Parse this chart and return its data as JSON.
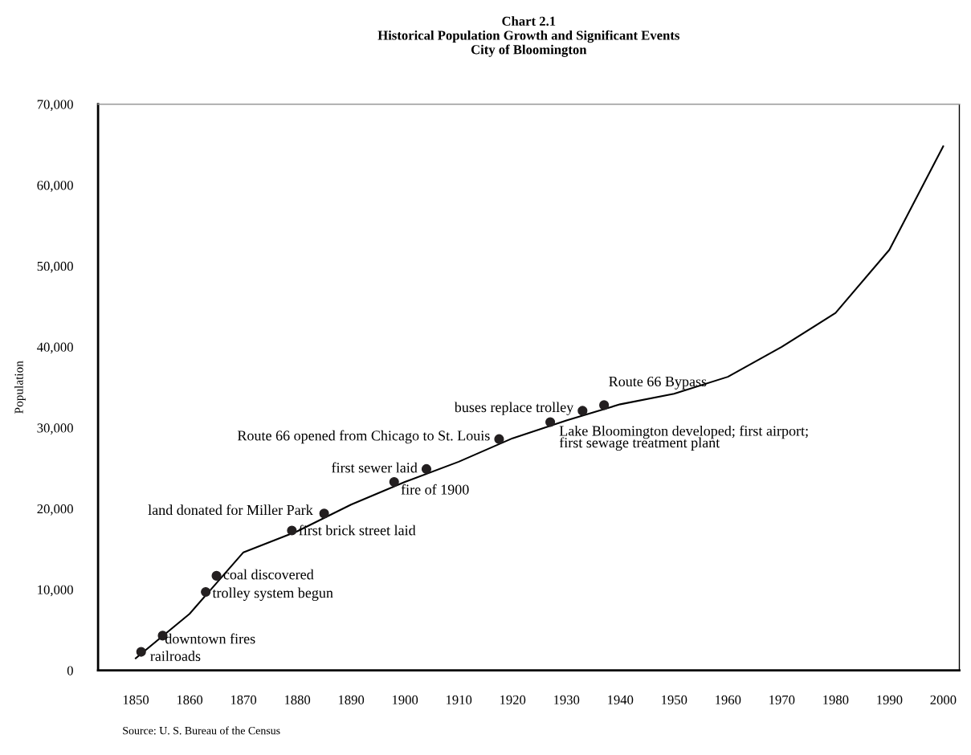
{
  "chart_data": {
    "type": "line",
    "title": "Chart 2.1\nHistorical Population Growth and Significant Events\nCity of Bloomington",
    "ylabel": "Population",
    "xlim": [
      1843,
      2003
    ],
    "xticks": [
      1850,
      1860,
      1870,
      1880,
      1890,
      1900,
      1910,
      1920,
      1930,
      1940,
      1950,
      1960,
      1970,
      1980,
      1990,
      2000
    ],
    "ylim": [
      0,
      70000
    ],
    "yticks": [
      0,
      {
        "value": 10000,
        "label": "10,000"
      },
      {
        "value": 20000,
        "label": "20,000"
      },
      {
        "value": 30000,
        "label": "30,000"
      },
      {
        "value": 40000,
        "label": "40,000"
      },
      {
        "value": 50000,
        "label": "50,000"
      },
      {
        "value": 60000,
        "label": "60,000"
      },
      {
        "value": 70000,
        "label": "70,000"
      }
    ],
    "grid": false,
    "series": [
      {
        "color": "#000000",
        "marker": "none",
        "x": [
          1850,
          1860,
          1870,
          1880,
          1890,
          1900,
          1910,
          1920,
          1930,
          1940,
          1950,
          1960,
          1970,
          1980,
          1990,
          2000
        ],
        "values": [
          1500,
          7000,
          14600,
          17200,
          20500,
          23300,
          25800,
          28700,
          30900,
          32900,
          34200,
          36300,
          40000,
          44200,
          52000,
          64800
        ]
      },
      {
        "type": "scatter",
        "color": "#231f20",
        "marker": "circle",
        "x": [
          1851,
          1855,
          1863,
          1865,
          1879,
          1885,
          1898,
          1904,
          1917.5,
          1927,
          1933,
          1937
        ],
        "values": [
          2300,
          4300,
          9700,
          11700,
          17300,
          19400,
          23300,
          24900,
          28600,
          30700,
          32100,
          32800
        ]
      }
    ],
    "annotations": [
      {
        "text": "railroads",
        "x": 1851,
        "y": 2300
      },
      {
        "text": "downtown fires",
        "x": 1855,
        "y": 4300
      },
      {
        "text": "trolley system begun",
        "x": 1863,
        "y": 9700
      },
      {
        "text": "coal discovered",
        "x": 1865,
        "y": 11700
      },
      {
        "text": "first brick street laid",
        "x": 1879,
        "y": 17300
      },
      {
        "text": "land donated for Miller Park",
        "x": 1885,
        "y": 19400
      },
      {
        "text": "fire of 1900",
        "x": 1898,
        "y": 23300
      },
      {
        "text": "first sewer laid",
        "x": 1904,
        "y": 24900
      },
      {
        "text": "Route 66 opened from Chicago to St. Louis",
        "x": 1917.5,
        "y": 28600
      },
      {
        "text": "Lake Bloomington developed; first airport;\nfirst sewage treatment plant",
        "x": 1927,
        "y": 30700
      },
      {
        "text": "buses replace trolley",
        "x": 1933,
        "y": 32100
      },
      {
        "text": "Route 66 Bypass",
        "x": 1937,
        "y": 32800
      },
      "Source: U. S. Bureau of the Census"
    ]
  }
}
